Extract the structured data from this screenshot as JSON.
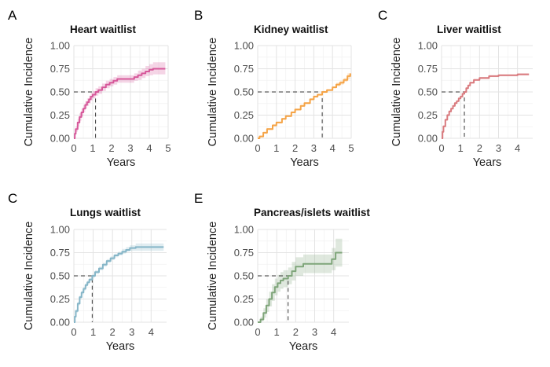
{
  "figure": {
    "colors": {
      "heart": "#D6589A",
      "kidney": "#F5A447",
      "liver": "#D97A7E",
      "lungs": "#86B6C8",
      "pancreas": "#7FA57A"
    }
  },
  "chart_data": [
    {
      "type": "line",
      "step": true,
      "letter": "A",
      "title": "Heart waitlist",
      "xlabel": "Years",
      "ylabel": "Cumulative Incidence",
      "xlim": [
        0,
        5
      ],
      "ylim": [
        0,
        1
      ],
      "xticks": [
        0,
        1,
        2,
        3,
        4,
        5
      ],
      "yticks": [
        0,
        0.25,
        0.5,
        0.75,
        1
      ],
      "ytick_labels": [
        "0.00",
        "0.25",
        "0.50",
        "0.75",
        "1.00"
      ],
      "grid": true,
      "color_key": "heart",
      "median": [
        1.15,
        0.5
      ],
      "series": [
        {
          "x": [
            0,
            0.05,
            0.1,
            0.2,
            0.3,
            0.4,
            0.5,
            0.6,
            0.7,
            0.8,
            0.9,
            1.0,
            1.15,
            1.3,
            1.5,
            1.7,
            1.9,
            2.1,
            2.3,
            2.6,
            3.0,
            3.2,
            3.4,
            3.6,
            3.8,
            4.0,
            4.2,
            4.4,
            4.85
          ],
          "y": [
            0,
            0.05,
            0.1,
            0.17,
            0.23,
            0.28,
            0.32,
            0.36,
            0.39,
            0.42,
            0.45,
            0.47,
            0.5,
            0.52,
            0.55,
            0.58,
            0.6,
            0.62,
            0.64,
            0.64,
            0.64,
            0.66,
            0.68,
            0.7,
            0.72,
            0.74,
            0.75,
            0.75,
            0.75
          ],
          "lower": [
            0,
            0.03,
            0.07,
            0.13,
            0.19,
            0.24,
            0.28,
            0.32,
            0.35,
            0.38,
            0.41,
            0.43,
            0.46,
            0.48,
            0.51,
            0.54,
            0.56,
            0.58,
            0.6,
            0.6,
            0.6,
            0.62,
            0.63,
            0.65,
            0.67,
            0.68,
            0.69,
            0.69,
            0.69
          ],
          "upper": [
            0,
            0.07,
            0.13,
            0.21,
            0.27,
            0.32,
            0.36,
            0.4,
            0.43,
            0.46,
            0.49,
            0.51,
            0.54,
            0.56,
            0.59,
            0.62,
            0.64,
            0.66,
            0.68,
            0.68,
            0.68,
            0.7,
            0.73,
            0.75,
            0.78,
            0.8,
            0.82,
            0.82,
            0.82
          ]
        }
      ]
    },
    {
      "type": "line",
      "step": true,
      "letter": "B",
      "title": "Kidney waitlist",
      "xlabel": "Years",
      "ylabel": "Cumulative Incidence",
      "xlim": [
        0,
        5
      ],
      "ylim": [
        0,
        1
      ],
      "xticks": [
        0,
        1,
        2,
        3,
        4,
        5
      ],
      "yticks": [
        0,
        0.25,
        0.5,
        0.75,
        1
      ],
      "ytick_labels": [
        "0.00",
        "0.25",
        "0.50",
        "0.75",
        "1.00"
      ],
      "grid": true,
      "color_key": "kidney",
      "median": [
        3.45,
        0.5
      ],
      "series": [
        {
          "x": [
            0,
            0.1,
            0.3,
            0.5,
            0.8,
            1.0,
            1.3,
            1.5,
            1.8,
            2.0,
            2.3,
            2.5,
            2.8,
            3.0,
            3.2,
            3.45,
            3.7,
            4.0,
            4.2,
            4.4,
            4.6,
            4.8,
            4.95
          ],
          "y": [
            0,
            0.02,
            0.06,
            0.1,
            0.14,
            0.17,
            0.21,
            0.24,
            0.28,
            0.31,
            0.35,
            0.38,
            0.42,
            0.45,
            0.47,
            0.5,
            0.52,
            0.55,
            0.58,
            0.6,
            0.63,
            0.67,
            0.7
          ],
          "lower": [
            0,
            0.01,
            0.05,
            0.09,
            0.13,
            0.16,
            0.2,
            0.23,
            0.27,
            0.3,
            0.34,
            0.37,
            0.41,
            0.44,
            0.46,
            0.49,
            0.51,
            0.54,
            0.56,
            0.58,
            0.61,
            0.64,
            0.66
          ],
          "upper": [
            0,
            0.03,
            0.07,
            0.11,
            0.15,
            0.18,
            0.22,
            0.25,
            0.29,
            0.32,
            0.36,
            0.39,
            0.43,
            0.46,
            0.48,
            0.51,
            0.53,
            0.56,
            0.6,
            0.62,
            0.65,
            0.7,
            0.74
          ]
        }
      ]
    },
    {
      "type": "line",
      "step": true,
      "letter": "C",
      "title": "Liver waitlist",
      "xlabel": "Years",
      "ylabel": "Cumulative Incidence",
      "xlim": [
        0,
        4.8
      ],
      "ylim": [
        0,
        1
      ],
      "xticks": [
        0,
        1,
        2,
        3,
        4
      ],
      "yticks": [
        0,
        0.25,
        0.5,
        0.75,
        1
      ],
      "ytick_labels": [
        "0.00",
        "0.25",
        "0.50",
        "0.75",
        "1.00"
      ],
      "grid": true,
      "color_key": "liver",
      "median": [
        1.2,
        0.5
      ],
      "series": [
        {
          "x": [
            0,
            0.05,
            0.1,
            0.2,
            0.3,
            0.4,
            0.5,
            0.6,
            0.7,
            0.8,
            0.9,
            1.0,
            1.1,
            1.2,
            1.3,
            1.4,
            1.5,
            1.7,
            2.0,
            2.5,
            3.0,
            3.5,
            4.0,
            4.6
          ],
          "y": [
            0,
            0.07,
            0.13,
            0.2,
            0.25,
            0.29,
            0.32,
            0.35,
            0.38,
            0.4,
            0.43,
            0.45,
            0.48,
            0.5,
            0.54,
            0.57,
            0.6,
            0.63,
            0.65,
            0.67,
            0.68,
            0.68,
            0.69,
            0.69
          ],
          "lower": [
            0,
            0.06,
            0.12,
            0.19,
            0.24,
            0.28,
            0.31,
            0.34,
            0.37,
            0.39,
            0.42,
            0.44,
            0.47,
            0.49,
            0.53,
            0.56,
            0.59,
            0.62,
            0.64,
            0.66,
            0.67,
            0.67,
            0.68,
            0.68
          ],
          "upper": [
            0,
            0.08,
            0.14,
            0.21,
            0.26,
            0.3,
            0.33,
            0.36,
            0.39,
            0.41,
            0.44,
            0.46,
            0.49,
            0.51,
            0.55,
            0.58,
            0.61,
            0.64,
            0.66,
            0.68,
            0.69,
            0.69,
            0.7,
            0.7
          ]
        }
      ]
    },
    {
      "type": "line",
      "step": true,
      "letter": "C",
      "title": "Lungs waitlist",
      "xlabel": "Years",
      "ylabel": "Cumulative Incidence",
      "xlim": [
        0,
        4.8
      ],
      "ylim": [
        0,
        1
      ],
      "xticks": [
        0,
        1,
        2,
        3,
        4
      ],
      "yticks": [
        0,
        0.25,
        0.5,
        0.75,
        1
      ],
      "ytick_labels": [
        "0.00",
        "0.25",
        "0.50",
        "0.75",
        "1.00"
      ],
      "grid": true,
      "color_key": "lungs",
      "median": [
        0.95,
        0.5
      ],
      "series": [
        {
          "x": [
            0,
            0.05,
            0.1,
            0.2,
            0.3,
            0.4,
            0.5,
            0.6,
            0.7,
            0.8,
            0.95,
            1.1,
            1.3,
            1.5,
            1.7,
            1.9,
            2.1,
            2.3,
            2.5,
            2.7,
            2.9,
            3.2,
            3.6,
            4.0,
            4.65
          ],
          "y": [
            0,
            0.06,
            0.12,
            0.2,
            0.27,
            0.32,
            0.36,
            0.4,
            0.43,
            0.46,
            0.5,
            0.54,
            0.58,
            0.62,
            0.66,
            0.69,
            0.72,
            0.74,
            0.76,
            0.78,
            0.8,
            0.81,
            0.81,
            0.81,
            0.81
          ],
          "lower": [
            0,
            0.05,
            0.1,
            0.18,
            0.25,
            0.3,
            0.34,
            0.38,
            0.41,
            0.44,
            0.48,
            0.52,
            0.56,
            0.6,
            0.64,
            0.67,
            0.7,
            0.72,
            0.74,
            0.76,
            0.77,
            0.77,
            0.77,
            0.77,
            0.77
          ],
          "upper": [
            0,
            0.07,
            0.14,
            0.22,
            0.29,
            0.34,
            0.38,
            0.42,
            0.45,
            0.48,
            0.52,
            0.56,
            0.6,
            0.64,
            0.68,
            0.71,
            0.74,
            0.76,
            0.79,
            0.81,
            0.83,
            0.85,
            0.85,
            0.85,
            0.85
          ]
        }
      ]
    },
    {
      "type": "line",
      "step": true,
      "letter": "E",
      "title": "Pancreas/islets waitlist",
      "xlabel": "Years",
      "ylabel": "Cumulative Incidence",
      "xlim": [
        0,
        4.8
      ],
      "ylim": [
        0,
        1
      ],
      "xticks": [
        0,
        1,
        2,
        3,
        4
      ],
      "yticks": [
        0,
        0.25,
        0.5,
        0.75,
        1
      ],
      "ytick_labels": [
        "0.00",
        "0.25",
        "0.50",
        "0.75",
        "1.00"
      ],
      "grid": true,
      "color_key": "pancreas",
      "median": [
        1.6,
        0.5
      ],
      "series": [
        {
          "x": [
            0,
            0.15,
            0.3,
            0.45,
            0.6,
            0.75,
            0.9,
            1.05,
            1.2,
            1.35,
            1.6,
            1.8,
            2.0,
            2.4,
            2.9,
            3.35,
            3.9,
            4.1,
            4.45
          ],
          "y": [
            0,
            0.03,
            0.1,
            0.18,
            0.25,
            0.32,
            0.38,
            0.42,
            0.45,
            0.47,
            0.5,
            0.55,
            0.6,
            0.63,
            0.63,
            0.63,
            0.68,
            0.75,
            0.75
          ],
          "lower": [
            0,
            0.01,
            0.05,
            0.11,
            0.17,
            0.23,
            0.29,
            0.33,
            0.36,
            0.38,
            0.41,
            0.45,
            0.5,
            0.53,
            0.53,
            0.53,
            0.56,
            0.6,
            0.6
          ],
          "upper": [
            0,
            0.06,
            0.15,
            0.25,
            0.33,
            0.41,
            0.47,
            0.51,
            0.54,
            0.56,
            0.59,
            0.65,
            0.7,
            0.73,
            0.73,
            0.73,
            0.8,
            0.9,
            0.9
          ]
        }
      ]
    }
  ]
}
